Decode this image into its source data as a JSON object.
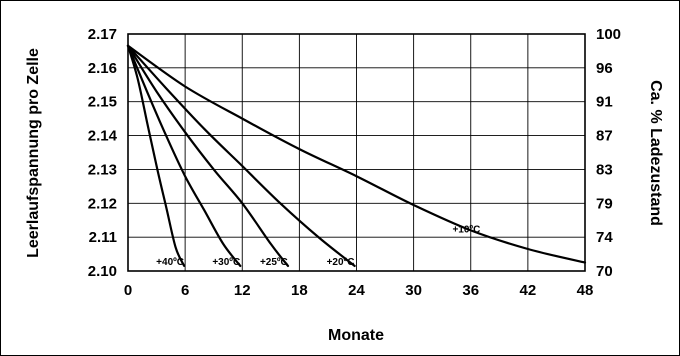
{
  "chart_data": {
    "type": "line",
    "xlabel": "Monate",
    "ylabel": "Leerlaufspannung pro Zelle",
    "ylabel_right": "Ca. % Ladezustand",
    "xlim": [
      0,
      48
    ],
    "ylim": [
      2.1,
      2.17
    ],
    "grid": true,
    "x_ticks": [
      "0",
      "6",
      "12",
      "18",
      "24",
      "30",
      "36",
      "42",
      "48"
    ],
    "y_ticks": [
      "2.10",
      "2.11",
      "2.12",
      "2.13",
      "2.14",
      "2.15",
      "2.16",
      "2.17"
    ],
    "y_right_ticks": [
      "70",
      "74",
      "79",
      "83",
      "87",
      "91",
      "96",
      "100"
    ],
    "series": [
      {
        "name": "+40ºC",
        "x": [
          0,
          1,
          2,
          3,
          4,
          5,
          5.9
        ],
        "y": [
          2.1665,
          2.157,
          2.144,
          2.131,
          2.119,
          2.107,
          2.1015
        ]
      },
      {
        "name": "+30ºC",
        "x": [
          0,
          2,
          4,
          6,
          8,
          10,
          11.8
        ],
        "y": [
          2.1665,
          2.153,
          2.14,
          2.128,
          2.118,
          2.108,
          2.1015
        ]
      },
      {
        "name": "+25ºC",
        "x": [
          0,
          3,
          6,
          9,
          12,
          15,
          16.8
        ],
        "y": [
          2.1665,
          2.153,
          2.141,
          2.13,
          2.12,
          2.108,
          2.1015
        ]
      },
      {
        "name": "+20ºC",
        "x": [
          0,
          4,
          8,
          12,
          16,
          20,
          23.8
        ],
        "y": [
          2.1665,
          2.154,
          2.142,
          2.131,
          2.12,
          2.11,
          2.1015
        ]
      },
      {
        "name": "+10ºC",
        "x": [
          0,
          6,
          12,
          18,
          24,
          30,
          36,
          42,
          48
        ],
        "y": [
          2.1665,
          2.1545,
          2.145,
          2.136,
          2.128,
          2.1195,
          2.112,
          2.1065,
          2.1025
        ]
      }
    ]
  }
}
